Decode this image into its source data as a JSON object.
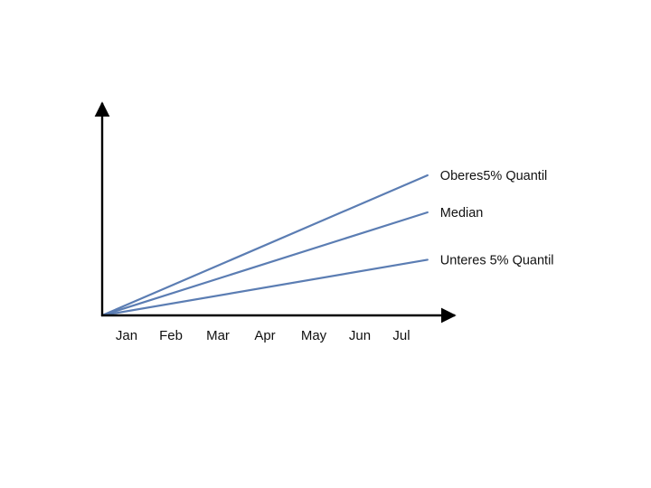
{
  "chart_data": {
    "type": "line",
    "categories": [
      "Jan",
      "Feb",
      "Mar",
      "Apr",
      "May",
      "Jun",
      "Jul"
    ],
    "series": [
      {
        "name": "Oberes5% Quantil",
        "x_start": 0,
        "x_end": 7,
        "y_start": 0,
        "y_end": 68
      },
      {
        "name": "Median",
        "x_start": 0,
        "x_end": 7,
        "y_start": 0,
        "y_end": 50
      },
      {
        "name": "Unteres 5% Quantil",
        "x_start": 0,
        "x_end": 7,
        "y_start": 0,
        "y_end": 27
      }
    ],
    "xlim": [
      0,
      8
    ],
    "ylim": [
      0,
      100
    ],
    "title": "",
    "xlabel": "",
    "ylabel": "",
    "grid": false,
    "line_color": "#5b7db3",
    "axis_color": "#000000"
  }
}
